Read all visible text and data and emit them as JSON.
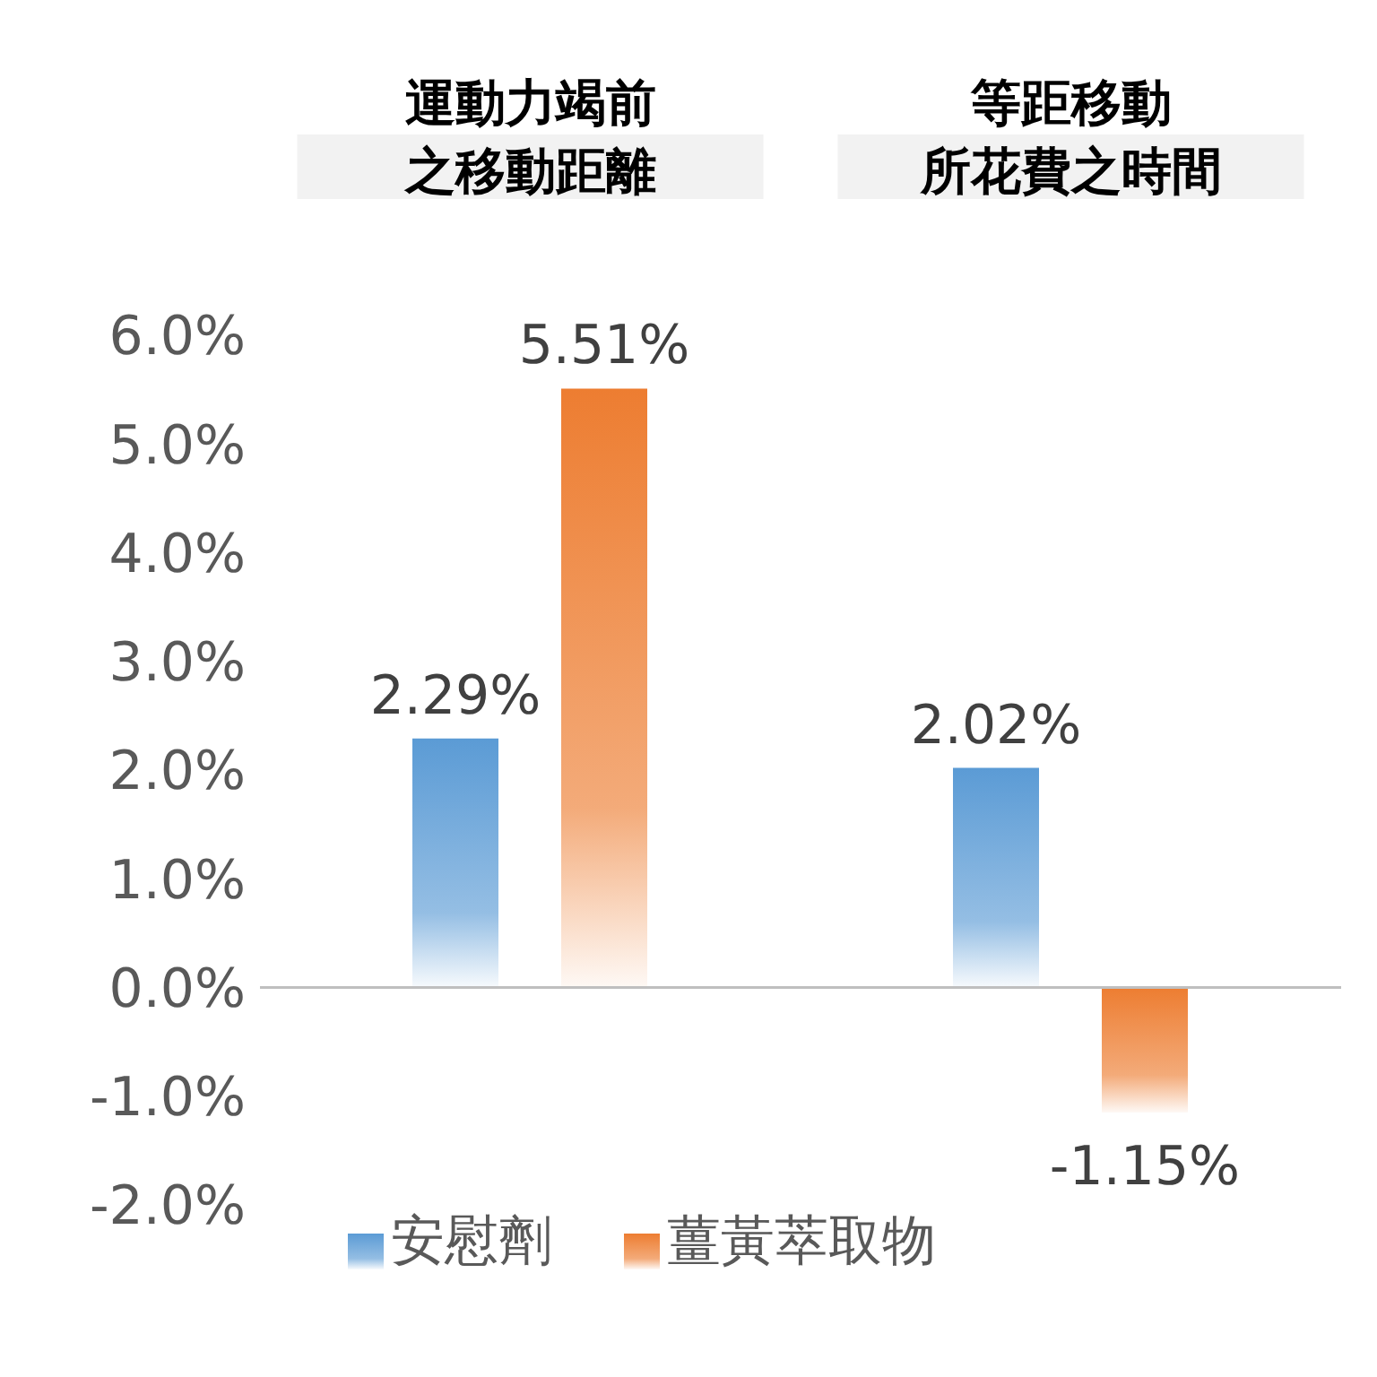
{
  "chart_data": {
    "type": "bar",
    "categories": [
      "運動力竭前之移動距離",
      "等距移動所花費之時間"
    ],
    "series": [
      {
        "name": "安慰劑",
        "color": "#5b9bd5",
        "values": [
          2.29,
          2.02
        ],
        "value_labels": [
          "2.29%",
          "2.02%"
        ]
      },
      {
        "name": "薑黃萃取物",
        "color": "#ed7d31",
        "values": [
          5.51,
          -1.15
        ],
        "value_labels": [
          "5.51%",
          "-1.15%"
        ]
      }
    ],
    "ylim": [
      -2,
      6
    ],
    "yticks": [
      {
        "value": -2,
        "label": "-2.0%"
      },
      {
        "value": -1,
        "label": "-1.0%"
      },
      {
        "value": 0,
        "label": "0.0%"
      },
      {
        "value": 1,
        "label": "1.0%"
      },
      {
        "value": 2,
        "label": "2.0%"
      },
      {
        "value": 3,
        "label": "3.0%"
      },
      {
        "value": 4,
        "label": "4.0%"
      },
      {
        "value": 5,
        "label": "5.0%"
      },
      {
        "value": 6,
        "label": "6.0%"
      }
    ],
    "legend": "bottom"
  }
}
